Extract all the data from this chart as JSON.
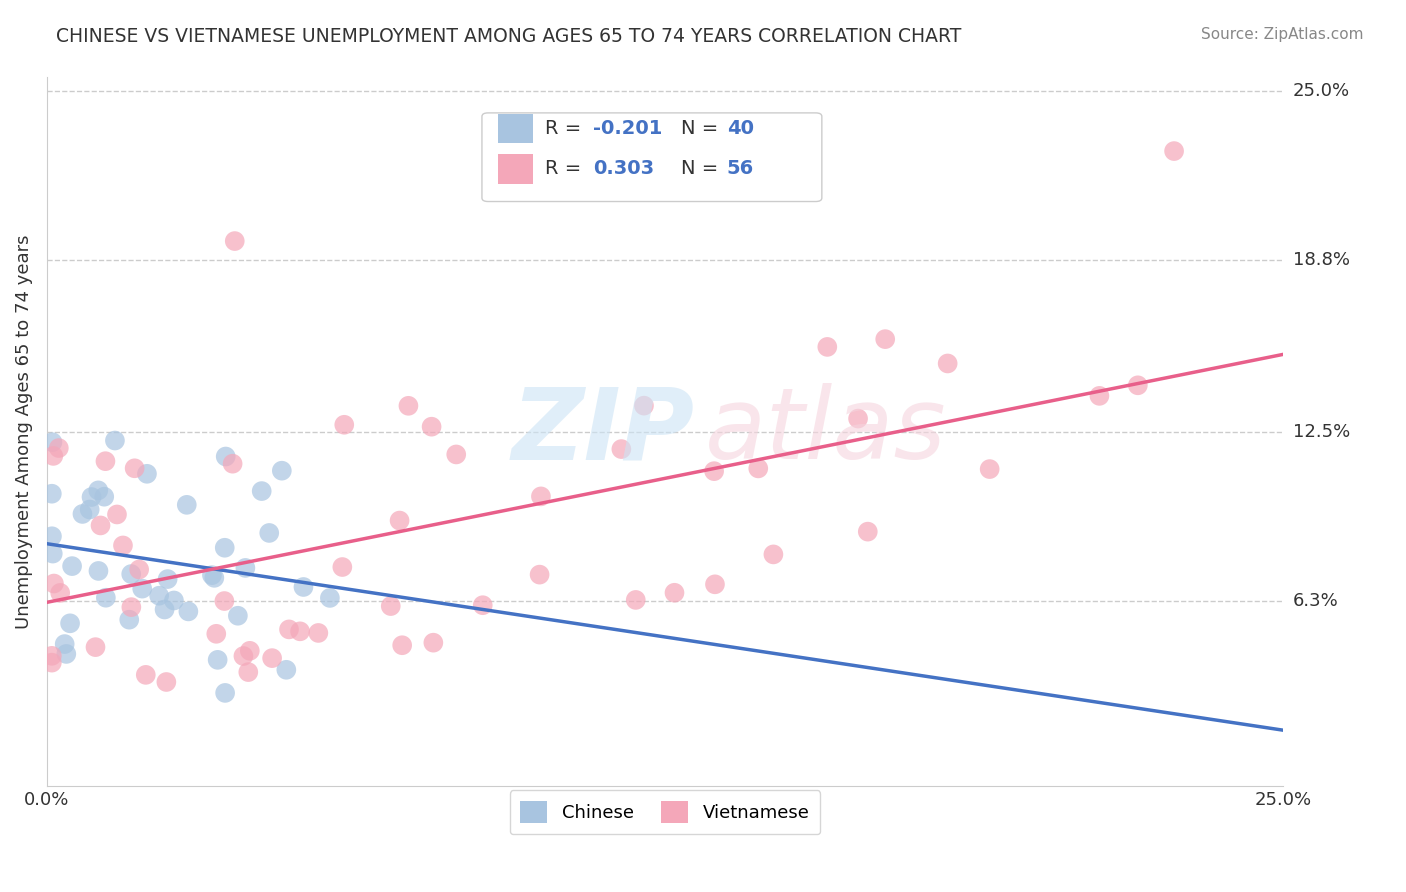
{
  "title": "CHINESE VS VIETNAMESE UNEMPLOYMENT AMONG AGES 65 TO 74 YEARS CORRELATION CHART",
  "source": "Source: ZipAtlas.com",
  "ylabel": "Unemployment Among Ages 65 to 74 years",
  "xlim": [
    0.0,
    0.25
  ],
  "ylim": [
    -0.005,
    0.255
  ],
  "right_ytick_positions": [
    0.0,
    0.063,
    0.125,
    0.188,
    0.25
  ],
  "right_ytick_labels": [
    "",
    "6.3%",
    "12.5%",
    "18.8%",
    "25.0%"
  ],
  "chinese_R": -0.201,
  "chinese_N": 40,
  "vietnamese_R": 0.303,
  "vietnamese_N": 56,
  "chinese_color": "#a8c4e0",
  "vietnamese_color": "#f4a7b9",
  "chinese_line_color": "#4472c4",
  "vietnamese_line_color": "#e85f8a",
  "background_color": "#ffffff",
  "legend_text_color": "#4472c4",
  "grid_color": "#cccccc"
}
